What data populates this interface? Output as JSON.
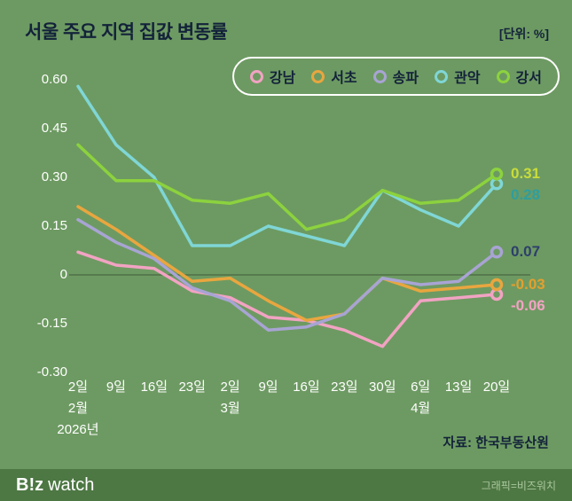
{
  "header": {
    "title": "서울 주요 지역 집값 변동률",
    "unit": "[단위: %]"
  },
  "chart_data": {
    "type": "line",
    "categories": [
      "2일",
      "9일",
      "16일",
      "23일",
      "2일",
      "9일",
      "16일",
      "23일",
      "30일",
      "6일",
      "13일",
      "20일"
    ],
    "month_markers": [
      {
        "index": 0,
        "label": "2월"
      },
      {
        "index": 4,
        "label": "3월"
      },
      {
        "index": 9,
        "label": "4월"
      }
    ],
    "year_label": "2026년",
    "y_ticks": [
      "0.60",
      "0.45",
      "0.30",
      "0.15",
      "0",
      "-0.15",
      "-0.30"
    ],
    "ylim": [
      -0.3,
      0.6
    ],
    "grid": "zero-line-only",
    "legend_position": "top",
    "series": [
      {
        "id": "gangnam",
        "name": "강남",
        "color": "#f2a3c3",
        "values": [
          0.07,
          0.03,
          0.02,
          -0.05,
          -0.07,
          -0.13,
          -0.14,
          -0.17,
          -0.22,
          -0.08,
          -0.07,
          -0.06
        ],
        "end_label": "-0.06",
        "end_label_color": "#f2a3c3"
      },
      {
        "id": "seocho",
        "name": "서초",
        "color": "#e9a63f",
        "values": [
          0.21,
          0.14,
          0.06,
          -0.02,
          -0.01,
          -0.08,
          -0.14,
          -0.12,
          -0.01,
          -0.05,
          -0.04,
          -0.03
        ],
        "end_label": "-0.03",
        "end_label_color": "#e2a030"
      },
      {
        "id": "songpa",
        "name": "송파",
        "color": "#a8a4d4",
        "values": [
          0.17,
          0.1,
          0.05,
          -0.04,
          -0.08,
          -0.17,
          -0.16,
          -0.12,
          -0.01,
          -0.03,
          -0.02,
          0.07
        ],
        "end_label": "0.07",
        "end_label_color": "#2d3f6b"
      },
      {
        "id": "gwanak",
        "name": "관악",
        "color": "#7fd6d6",
        "values": [
          0.58,
          0.4,
          0.3,
          0.09,
          0.09,
          0.15,
          0.12,
          0.09,
          0.26,
          0.2,
          0.15,
          0.28
        ],
        "end_label": "0.28",
        "end_label_color": "#2f9e9e"
      },
      {
        "id": "gangseo",
        "name": "강서",
        "color": "#8cd23e",
        "values": [
          0.4,
          0.29,
          0.29,
          0.23,
          0.22,
          0.25,
          0.14,
          0.17,
          0.26,
          0.22,
          0.23,
          0.31
        ],
        "end_label": "0.31",
        "end_label_color": "#c9dc3a"
      }
    ],
    "title": "서울 주요 지역 집값 변동률",
    "ylabel": "%"
  },
  "source": "자료: 한국부동산원",
  "footer": {
    "logo_b": "B!z",
    "logo_watch": "watch",
    "credit": "그래픽=비즈워치"
  },
  "colors": {
    "background": "#6d9a62",
    "footer_bg": "#4d7743",
    "text_dark": "#13223a",
    "axis_text": "#ffffff",
    "zero_line": "#4e6f46"
  }
}
